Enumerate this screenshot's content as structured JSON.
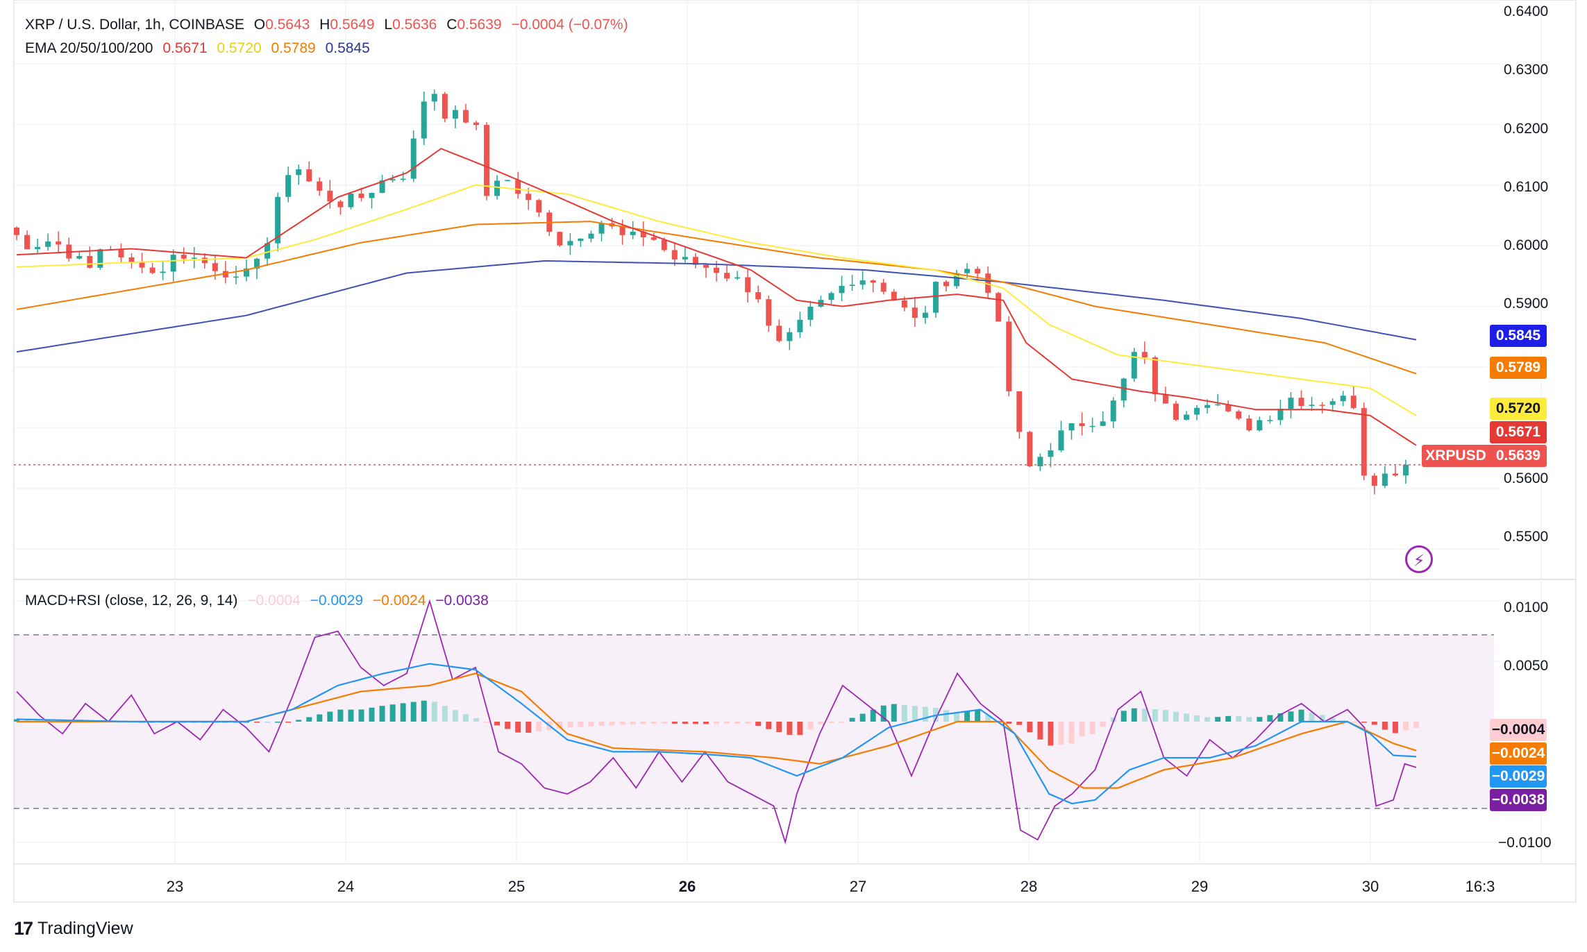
{
  "legend": {
    "symbol": "XRP / U.S. Dollar, 1h, COINBASE",
    "o_label": "O",
    "o": "0.5643",
    "h_label": "H",
    "h": "0.5649",
    "l_label": "L",
    "l": "0.5636",
    "c_label": "C",
    "c": "0.5639",
    "change": "−0.0004 (−0.07%)",
    "ema_label": "EMA 20/50/100/200",
    "ema20": "0.5671",
    "ema50": "0.5720",
    "ema100": "0.5789",
    "ema200": "0.5845",
    "macd_label": "MACD+RSI (close, 12, 26, 9, 14)",
    "macd_hist": "−0.0004",
    "macd_line": "−0.0029",
    "macd_signal": "−0.0024",
    "rsi": "−0.0038"
  },
  "price_axis_labels": [
    "0.6400",
    "0.6300",
    "0.6200",
    "0.6100",
    "0.6000",
    "0.5900",
    "0.5800",
    "0.5700",
    "0.5600",
    "0.5500"
  ],
  "macd_axis_labels": [
    "0.0100",
    "0.0050",
    "−0.0100"
  ],
  "tags": {
    "ema200": "0.5845",
    "ema100": "0.5789",
    "ema50": "0.5720",
    "ema20": "0.5671",
    "symbol": "XRPUSD",
    "last": "0.5639",
    "macd_hist": "−0.0004",
    "macd_signal": "−0.0024",
    "macd_line": "−0.0029",
    "rsi": "−0.0038"
  },
  "x_axis_labels": [
    "23",
    "24",
    "25",
    "26",
    "27",
    "28",
    "29",
    "30",
    "16:3"
  ],
  "brand": "TradingView",
  "colors": {
    "up": "#26a69a",
    "down": "#ef5350",
    "ema20": "#e53935",
    "ema50": "#ffeb3b",
    "ema100": "#f57c00",
    "ema200": "#3f51b5",
    "macd": "#2196f3",
    "signal": "#f57c00",
    "rsi": "#9c27b0",
    "hist_up_strong": "#26a69a",
    "hist_up_weak": "#b2dfdb",
    "hist_down_strong": "#ef5350",
    "hist_down_weak": "#ffcdd2"
  },
  "chart_data": {
    "type": "candlestick",
    "title": "XRP / U.S. Dollar, 1h, COINBASE",
    "y_range": [
      0.545,
      0.6405
    ],
    "days": [
      "23",
      "24",
      "25",
      "26",
      "27",
      "28",
      "29",
      "30"
    ],
    "close_anchors": [
      [
        0.0,
        0.603
      ],
      [
        2.0,
        0.6
      ],
      [
        4.0,
        0.601
      ],
      [
        6.0,
        0.598
      ],
      [
        7.4,
        0.596
      ],
      [
        8.5,
        0.601
      ],
      [
        9.5,
        0.599
      ],
      [
        10.5,
        0.596
      ],
      [
        11.5,
        0.598
      ],
      [
        13.0,
        0.595
      ],
      [
        15.0,
        0.599
      ],
      [
        17.5,
        0.597
      ],
      [
        19.0,
        0.596
      ],
      [
        20.5,
        0.593
      ],
      [
        21.5,
        0.598
      ],
      [
        23.0,
        0.601
      ],
      [
        24.0,
        0.61
      ],
      [
        25.0,
        0.614
      ],
      [
        27.0,
        0.609
      ],
      [
        29.0,
        0.607
      ],
      [
        31.0,
        0.608
      ],
      [
        33.0,
        0.611
      ],
      [
        35.0,
        0.612
      ],
      [
        36.0,
        0.622
      ],
      [
        37.0,
        0.627
      ],
      [
        38.0,
        0.622
      ],
      [
        40.0,
        0.621
      ],
      [
        41.0,
        0.619
      ],
      [
        41.8,
        0.608
      ],
      [
        43.0,
        0.612
      ],
      [
        45.0,
        0.608
      ],
      [
        47.0,
        0.604
      ],
      [
        48.5,
        0.6
      ],
      [
        50.0,
        0.602
      ],
      [
        52.0,
        0.604
      ],
      [
        54.0,
        0.601
      ],
      [
        56.0,
        0.602
      ],
      [
        58.0,
        0.598
      ],
      [
        60.0,
        0.597
      ],
      [
        62.0,
        0.596
      ],
      [
        64.0,
        0.594
      ],
      [
        65.5,
        0.592
      ],
      [
        67.0,
        0.583
      ],
      [
        68.5,
        0.585
      ],
      [
        70.0,
        0.589
      ],
      [
        72.0,
        0.592
      ],
      [
        74.0,
        0.595
      ],
      [
        76.0,
        0.594
      ],
      [
        78.0,
        0.59
      ],
      [
        79.5,
        0.587
      ],
      [
        81.0,
        0.593
      ],
      [
        83.0,
        0.596
      ],
      [
        84.5,
        0.596
      ],
      [
        86.0,
        0.592
      ],
      [
        87.5,
        0.575
      ],
      [
        89.0,
        0.563
      ],
      [
        90.5,
        0.566
      ],
      [
        92.0,
        0.569
      ],
      [
        94.0,
        0.571
      ],
      [
        96.0,
        0.572
      ],
      [
        97.5,
        0.578
      ],
      [
        98.5,
        0.583
      ],
      [
        99.5,
        0.58
      ],
      [
        100.5,
        0.574
      ],
      [
        102.0,
        0.572
      ],
      [
        103.5,
        0.574
      ],
      [
        105.0,
        0.575
      ],
      [
        106.5,
        0.572
      ],
      [
        108.0,
        0.57
      ],
      [
        110.0,
        0.572
      ],
      [
        112.0,
        0.575
      ],
      [
        114.0,
        0.574
      ],
      [
        116.0,
        0.575
      ],
      [
        117.5,
        0.574
      ],
      [
        118.5,
        0.561
      ],
      [
        120.0,
        0.562
      ],
      [
        122.0,
        0.5639
      ]
    ],
    "ema20_anchors": [
      [
        0,
        0.5985
      ],
      [
        10,
        0.5995
      ],
      [
        20,
        0.598
      ],
      [
        24,
        0.603
      ],
      [
        28,
        0.608
      ],
      [
        34,
        0.612
      ],
      [
        37,
        0.616
      ],
      [
        41,
        0.613
      ],
      [
        46,
        0.609
      ],
      [
        52,
        0.604
      ],
      [
        58,
        0.6
      ],
      [
        64,
        0.596
      ],
      [
        68,
        0.591
      ],
      [
        72,
        0.59
      ],
      [
        76,
        0.591
      ],
      [
        82,
        0.592
      ],
      [
        86,
        0.591
      ],
      [
        88,
        0.584
      ],
      [
        92,
        0.578
      ],
      [
        98,
        0.576
      ],
      [
        102,
        0.575
      ],
      [
        108,
        0.573
      ],
      [
        114,
        0.573
      ],
      [
        118,
        0.572
      ],
      [
        122,
        0.5671
      ]
    ],
    "ema50_anchors": [
      [
        0,
        0.5965
      ],
      [
        20,
        0.598
      ],
      [
        26,
        0.601
      ],
      [
        34,
        0.606
      ],
      [
        40,
        0.61
      ],
      [
        48,
        0.6085
      ],
      [
        56,
        0.604
      ],
      [
        64,
        0.6005
      ],
      [
        72,
        0.598
      ],
      [
        80,
        0.596
      ],
      [
        86,
        0.593
      ],
      [
        90,
        0.587
      ],
      [
        96,
        0.582
      ],
      [
        104,
        0.58
      ],
      [
        112,
        0.578
      ],
      [
        118,
        0.5765
      ],
      [
        122,
        0.572
      ]
    ],
    "ema100_anchors": [
      [
        0,
        0.5895
      ],
      [
        20,
        0.596
      ],
      [
        30,
        0.6005
      ],
      [
        40,
        0.6035
      ],
      [
        50,
        0.604
      ],
      [
        60,
        0.601
      ],
      [
        70,
        0.598
      ],
      [
        80,
        0.596
      ],
      [
        86,
        0.594
      ],
      [
        94,
        0.59
      ],
      [
        104,
        0.587
      ],
      [
        114,
        0.584
      ],
      [
        122,
        0.5789
      ]
    ],
    "ema200_anchors": [
      [
        0,
        0.5825
      ],
      [
        20,
        0.5885
      ],
      [
        34,
        0.5955
      ],
      [
        46,
        0.5975
      ],
      [
        60,
        0.597
      ],
      [
        74,
        0.596
      ],
      [
        86,
        0.594
      ],
      [
        100,
        0.591
      ],
      [
        112,
        0.588
      ],
      [
        122,
        0.5845
      ]
    ],
    "macd_range": [
      -0.0118,
      0.0118
    ],
    "macd_anchors": [
      [
        0,
        0.0002
      ],
      [
        10,
        0.0
      ],
      [
        20,
        0.0
      ],
      [
        24,
        0.001
      ],
      [
        28,
        0.003
      ],
      [
        32,
        0.004
      ],
      [
        36,
        0.0048
      ],
      [
        40,
        0.0043
      ],
      [
        44,
        0.0015
      ],
      [
        48,
        -0.0015
      ],
      [
        52,
        -0.0025
      ],
      [
        56,
        -0.0025
      ],
      [
        60,
        -0.0027
      ],
      [
        64,
        -0.003
      ],
      [
        68,
        -0.0045
      ],
      [
        72,
        -0.003
      ],
      [
        76,
        -0.0005
      ],
      [
        80,
        0.0005
      ],
      [
        84,
        0.001
      ],
      [
        87,
        -0.001
      ],
      [
        90,
        -0.006
      ],
      [
        92,
        -0.0068
      ],
      [
        94,
        -0.0065
      ],
      [
        97,
        -0.004
      ],
      [
        100,
        -0.003
      ],
      [
        104,
        -0.003
      ],
      [
        108,
        -0.002
      ],
      [
        112,
        0.0
      ],
      [
        116,
        0.0
      ],
      [
        118,
        -0.001
      ],
      [
        120,
        -0.0028
      ],
      [
        122,
        -0.0029
      ]
    ],
    "signal_anchors": [
      [
        0,
        0.0
      ],
      [
        10,
        0.0
      ],
      [
        20,
        0.0
      ],
      [
        26,
        0.0015
      ],
      [
        30,
        0.0025
      ],
      [
        36,
        0.003
      ],
      [
        40,
        0.004
      ],
      [
        44,
        0.0025
      ],
      [
        48,
        -0.001
      ],
      [
        52,
        -0.0022
      ],
      [
        60,
        -0.0025
      ],
      [
        66,
        -0.003
      ],
      [
        70,
        -0.0035
      ],
      [
        76,
        -0.002
      ],
      [
        82,
        0.0
      ],
      [
        86,
        0.0
      ],
      [
        90,
        -0.004
      ],
      [
        93,
        -0.0055
      ],
      [
        96,
        -0.0055
      ],
      [
        100,
        -0.004
      ],
      [
        106,
        -0.003
      ],
      [
        112,
        -0.001
      ],
      [
        116,
        0.0
      ],
      [
        120,
        -0.0018
      ],
      [
        122,
        -0.0024
      ]
    ],
    "rsi_anchors": [
      [
        0,
        0.0025
      ],
      [
        2,
        0.0005
      ],
      [
        4,
        -0.001
      ],
      [
        6,
        0.0015
      ],
      [
        8,
        0.0
      ],
      [
        10,
        0.0022
      ],
      [
        12,
        -0.001
      ],
      [
        14,
        0.0
      ],
      [
        16,
        -0.0015
      ],
      [
        18,
        0.001
      ],
      [
        20,
        -0.0005
      ],
      [
        22,
        -0.0025
      ],
      [
        24,
        0.002
      ],
      [
        26,
        0.007
      ],
      [
        28,
        0.0075
      ],
      [
        30,
        0.0045
      ],
      [
        32,
        0.003
      ],
      [
        34,
        0.004
      ],
      [
        36,
        0.01
      ],
      [
        38,
        0.0035
      ],
      [
        40,
        0.0045
      ],
      [
        42,
        -0.0025
      ],
      [
        44,
        -0.0035
      ],
      [
        46,
        -0.0055
      ],
      [
        48,
        -0.006
      ],
      [
        50,
        -0.005
      ],
      [
        52,
        -0.003
      ],
      [
        54,
        -0.0055
      ],
      [
        56,
        -0.0025
      ],
      [
        58,
        -0.005
      ],
      [
        60,
        -0.0025
      ],
      [
        62,
        -0.005
      ],
      [
        64,
        -0.006
      ],
      [
        66,
        -0.007
      ],
      [
        67,
        -0.01
      ],
      [
        68,
        -0.006
      ],
      [
        70,
        -0.001
      ],
      [
        72,
        0.003
      ],
      [
        74,
        0.0015
      ],
      [
        76,
        0.0
      ],
      [
        78,
        -0.0045
      ],
      [
        80,
        0.0
      ],
      [
        82,
        0.004
      ],
      [
        84,
        0.0015
      ],
      [
        86,
        0.0
      ],
      [
        87.5,
        -0.009
      ],
      [
        89,
        -0.0098
      ],
      [
        90.5,
        -0.007
      ],
      [
        92,
        -0.006
      ],
      [
        94,
        -0.004
      ],
      [
        96,
        0.001
      ],
      [
        98,
        0.0025
      ],
      [
        100,
        -0.003
      ],
      [
        102,
        -0.0045
      ],
      [
        104,
        -0.0015
      ],
      [
        106,
        -0.003
      ],
      [
        108,
        -0.0015
      ],
      [
        110,
        0.0005
      ],
      [
        112,
        0.0015
      ],
      [
        114,
        0.0
      ],
      [
        116,
        0.001
      ],
      [
        117.5,
        -0.0005
      ],
      [
        118.5,
        -0.007
      ],
      [
        120,
        -0.0065
      ],
      [
        121,
        -0.0035
      ],
      [
        122,
        -0.0038
      ]
    ],
    "rsi_band": [
      0.0072,
      -0.0072
    ]
  }
}
